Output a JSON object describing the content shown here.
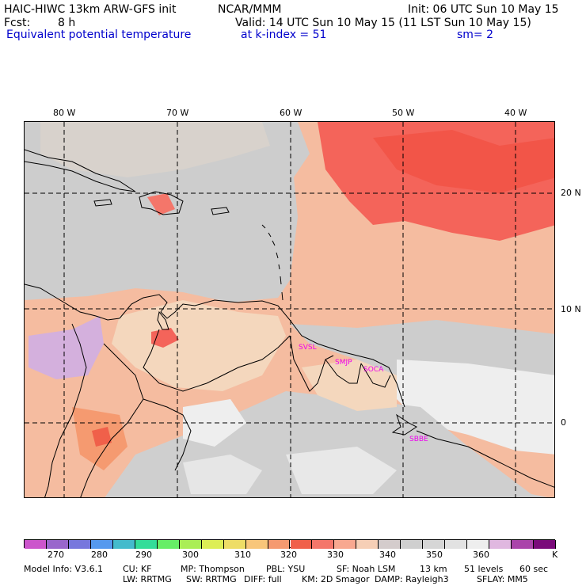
{
  "header": {
    "model": "HAIC-HIWC 13km ARW-GFS init",
    "org": "NCAR/MMM",
    "init": "Init: 06 UTC Sun 10 May 15",
    "fcst_label": "Fcst:",
    "fcst_value": "8 h",
    "valid": "Valid: 14 UTC Sun 10 May 15 (11 LST Sun 10 May 15)",
    "field": "Equivalent potential temperature",
    "level": "at k-index =  51",
    "smooth": "sm= 2"
  },
  "axes": {
    "lon_labels": [
      "80 W",
      "70 W",
      "60 W",
      "50 W",
      "40 W"
    ],
    "lat_labels": [
      "20 N",
      "10 N",
      "0"
    ]
  },
  "stations": [
    "SVSL",
    "SMJP",
    "SOCA",
    "SBBE"
  ],
  "colorbar": {
    "colors": [
      "#cc55cc",
      "#9966cc",
      "#7777dd",
      "#5599ee",
      "#44bbcc",
      "#33dd99",
      "#66ee66",
      "#aaee55",
      "#ddee55",
      "#eedd66",
      "#f8c67a",
      "#f59a70",
      "#f0604a",
      "#f4766a",
      "#f8a890",
      "#f6cfb6",
      "#d4cccc",
      "#cfcfcf",
      "#d6d6d6",
      "#e2e2e2",
      "#eeeeee",
      "#e0b8e0",
      "#aa44aa",
      "#7a0a7a"
    ],
    "ticks": [
      "270",
      "280",
      "290",
      "300",
      "310",
      "320",
      "330",
      "340",
      "350",
      "360"
    ],
    "unit": "K"
  },
  "map_colors": {
    "orange_base": "#f5bca0",
    "red": "#f4645a",
    "grey": "#cdcdcd",
    "light_grey": "#eeeeee",
    "tan": "#f4d7bd",
    "purple": "#d4b0dd",
    "coast": "#000000",
    "station_label": "#ee00ee"
  },
  "footer": {
    "line1": [
      "Model Info: V3.6.1",
      "CU: KF",
      "MP: Thompson",
      "PBL: YSU",
      "SF: Noah LSM",
      "13 km",
      "51 levels",
      "60 sec"
    ],
    "line2": [
      "LW: RRTMG",
      "SW: RRTMG",
      "DIFF: full",
      "KM: 2D Smagor",
      "DAMP: Rayleigh3",
      "SFLAY: MM5"
    ]
  }
}
